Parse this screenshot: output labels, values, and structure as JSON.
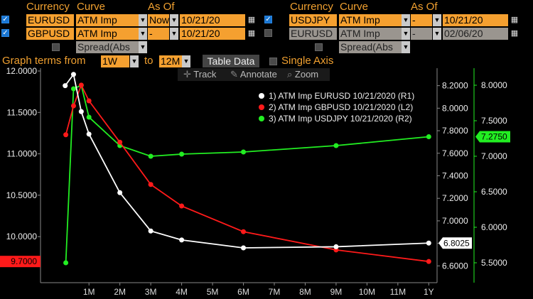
{
  "header": {
    "currency_label_1": "Currency",
    "curve_label_1": "Curve",
    "asof_label_1": "As Of",
    "currency_label_2": "Currency",
    "curve_label_2": "Curve",
    "asof_label_2": "As Of"
  },
  "left_rows": [
    {
      "checked": true,
      "currency": "EURUSD",
      "curve": "ATM Imp",
      "asof_mode": "Now",
      "date": "10/21/20"
    },
    {
      "checked": true,
      "currency": "GBPUSD",
      "curve": "ATM Imp",
      "asof_mode": "-",
      "date": "10/21/20"
    },
    {
      "checked": false,
      "curve": "Spread(Abs"
    }
  ],
  "right_rows": [
    {
      "checked": true,
      "currency": "USDJPY",
      "curve": "ATM Imp",
      "asof_mode": "-",
      "date": "10/21/20"
    },
    {
      "checked": false,
      "currency": "EURUSD",
      "curve": "ATM Imp",
      "asof_mode": "-",
      "date": "02/06/20"
    },
    {
      "checked": false,
      "curve": "Spread(Abs"
    }
  ],
  "controls": {
    "graph_terms_label": "Graph terms from",
    "from_value": "1W",
    "to_label": "to",
    "to_value": "12M",
    "table_data_label": "Table Data",
    "single_axis_label": "Single Axis"
  },
  "toolbar": {
    "track_label": "Track",
    "annotate_label": "Annotate",
    "zoom_label": "Zoom"
  },
  "colors": {
    "eurusd": "#ffffff",
    "gbpusd": "#ff1a1a",
    "usdjpy": "#22ee22",
    "accent": "#f0a030"
  },
  "chart_data": {
    "type": "line",
    "x_ticks": [
      "1M",
      "2M",
      "3M",
      "4M",
      "5M",
      "6M",
      "7M",
      "8M",
      "9M",
      "10M",
      "11M",
      "1Y"
    ],
    "x_tick_months": [
      1,
      2,
      3,
      4,
      5,
      6,
      7,
      8,
      9,
      10,
      11,
      12
    ],
    "x_range_months": [
      -0.5,
      12.2
    ],
    "series": [
      {
        "name": "1) ATM Imp EURUSD 10/21/2020 (R1)",
        "axis": "R1",
        "color": "#ffffff",
        "x_months": [
          0.23,
          0.5,
          0.75,
          1,
          2,
          3,
          4,
          6,
          9,
          12
        ],
        "values": [
          8.2,
          8.3,
          7.97,
          7.77,
          7.25,
          6.91,
          6.83,
          6.76,
          6.77,
          6.8025
        ],
        "last_label": "6.8025"
      },
      {
        "name": "2) ATM Imp GBPUSD 10/21/2020 (L2)",
        "axis": "L2",
        "color": "#ff1a1a",
        "x_months": [
          0.25,
          0.5,
          0.75,
          1,
          2,
          3,
          4,
          6,
          9,
          12
        ],
        "values": [
          11.23,
          11.58,
          11.83,
          11.64,
          11.14,
          10.63,
          10.37,
          10.06,
          9.84,
          9.7
        ],
        "last_label": "9.7000"
      },
      {
        "name": "3) ATM Imp USDJPY 10/21/2020 (R2)",
        "axis": "R2",
        "color": "#22ee22",
        "x_months": [
          0.25,
          0.5,
          0.75,
          1,
          2,
          3,
          4,
          6,
          9,
          12
        ],
        "values": [
          5.5,
          7.95,
          8.0,
          7.55,
          7.15,
          7.0,
          7.03,
          7.06,
          7.15,
          7.275
        ],
        "last_label": "7.2750"
      }
    ],
    "axes": {
      "L2": {
        "ticks": [
          "12.0000",
          "11.5000",
          "11.0000",
          "10.5000",
          "10.0000"
        ],
        "tick_values": [
          12,
          11.5,
          11,
          10.5,
          10
        ],
        "range": [
          9.47,
          12.0
        ]
      },
      "R1": {
        "ticks": [
          "8.2000",
          "8.0000",
          "7.8000",
          "7.6000",
          "7.4000",
          "7.2000",
          "7.0000",
          "6.8000",
          "6.6000"
        ],
        "tick_values": [
          8.2,
          8.0,
          7.8,
          7.6,
          7.4,
          7.2,
          7.0,
          6.8,
          6.6
        ],
        "range": [
          6.47,
          8.33
        ]
      },
      "R2": {
        "ticks": [
          "8.0000",
          "7.5000",
          "7.0000",
          "6.5000",
          "6.0000",
          "5.5000"
        ],
        "tick_values": [
          8.0,
          7.5,
          7.0,
          6.5,
          6.0,
          5.5
        ],
        "range": [
          5.25,
          8.2
        ]
      }
    },
    "grid": false,
    "legend_placement": "top-right"
  }
}
